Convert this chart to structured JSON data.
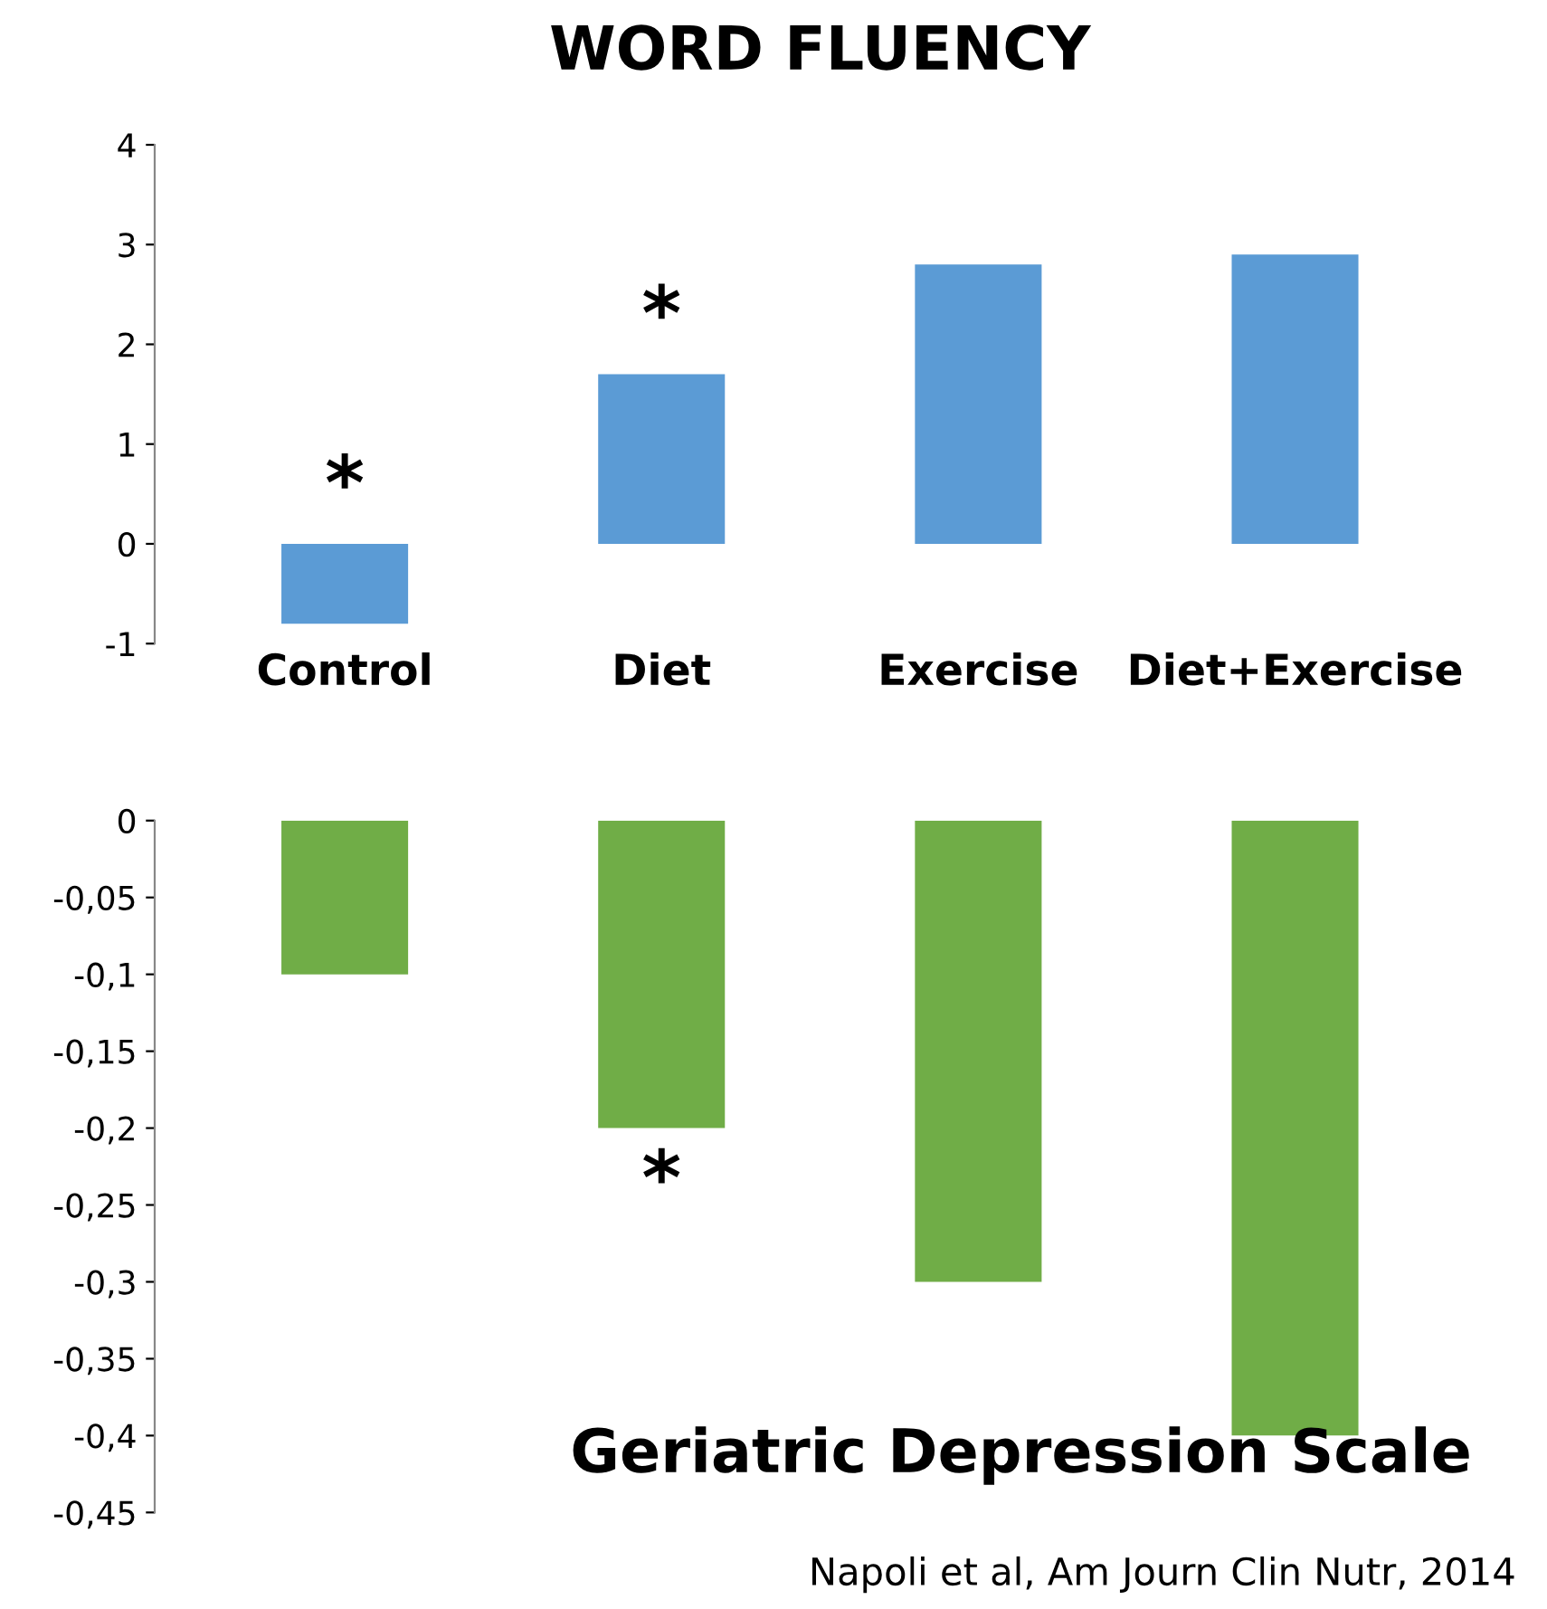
{
  "chart_data": [
    {
      "type": "bar",
      "title": "WORD FLUENCY",
      "categories": [
        "Control",
        "Diet",
        "Exercise",
        "Diet+Exercise"
      ],
      "series": [
        {
          "color": "#5b9bd5",
          "values": [
            -0.8,
            1.7,
            2.8,
            2.9
          ]
        }
      ],
      "ylim": [
        -1,
        4
      ],
      "yticks": [
        -1,
        0,
        1,
        2,
        3,
        4
      ],
      "grid": false,
      "legend": false,
      "annotations": [
        {
          "text": "*",
          "x": "Control",
          "y": 0
        },
        {
          "text": "*",
          "x": "Diet",
          "y": 1.7
        }
      ]
    },
    {
      "type": "bar",
      "title": "Geriatric Depression Scale",
      "categories": [
        null,
        null,
        null,
        null
      ],
      "series": [
        {
          "color": "#70ad47",
          "values": [
            -0.1,
            -0.2,
            -0.3,
            -0.4
          ]
        }
      ],
      "ylim": [
        -0.45,
        0
      ],
      "yticks": [
        0,
        {
          "value": -0.05,
          "label": "-0,05"
        },
        {
          "value": -0.1,
          "label": "-0,1"
        },
        {
          "value": -0.15,
          "label": "-0,15"
        },
        {
          "value": -0.2,
          "label": "-0,2"
        },
        {
          "value": -0.25,
          "label": "-0,25"
        },
        {
          "value": -0.3,
          "label": "-0,3"
        },
        {
          "value": -0.35,
          "label": "-0,35"
        },
        {
          "value": -0.4,
          "label": "-0,4"
        },
        {
          "value": -0.45,
          "label": "-0,45"
        }
      ],
      "tick_labels": "y",
      "grid": false,
      "legend": false,
      "annotations": [
        {
          "text": "*",
          "y": -0.2
        },
        "Napoli et al, Am Journ Clin Nutr, 2014"
      ]
    }
  ]
}
